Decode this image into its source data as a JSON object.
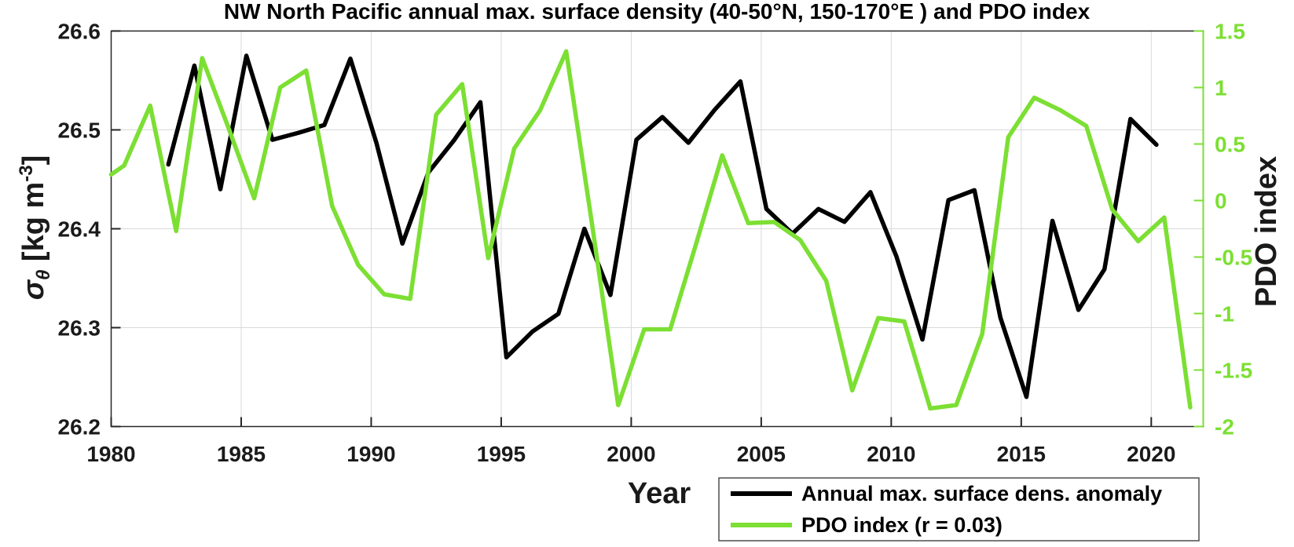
{
  "chart_data": {
    "type": "line",
    "title": "NW North Pacific annual max. surface density (40-50°N, 150-170°E ) and PDO index",
    "xlabel": "Year",
    "ylabel_left_parts": {
      "sigma": "σ",
      "sub": "θ",
      "mid": " [kg m",
      "sup": "-3",
      "end": "]"
    },
    "ylabel_right": "PDO index",
    "xlim": [
      1980,
      2022
    ],
    "ylim_left": [
      26.2,
      26.6
    ],
    "ylim_right": [
      -2,
      1.5
    ],
    "grid": true,
    "xticks": [
      1980,
      1985,
      1990,
      1995,
      2000,
      2005,
      2010,
      2015,
      2020
    ],
    "xtick_labels": [
      "1980",
      "1985",
      "1990",
      "1995",
      "2000",
      "2005",
      "2010",
      "2015",
      "2020"
    ],
    "yticks_left": [
      26.2,
      26.3,
      26.4,
      26.5,
      26.6
    ],
    "ytick_labels_left": [
      "26.2",
      "26.3",
      "26.4",
      "26.5",
      "26.6"
    ],
    "yticks_right": [
      -2,
      -1.5,
      -1,
      -0.5,
      0,
      0.5,
      1,
      1.5
    ],
    "ytick_labels_right": [
      "-2",
      "-1.5",
      "-1",
      "-0.5",
      "0",
      "0.5",
      "1",
      "1.5"
    ],
    "colors": {
      "density_line": "#000000",
      "pdo_line": "#7cdf33",
      "grid": "#d9d9d9",
      "axis": "#262626",
      "tick_text": "#1a1a1a"
    },
    "series": [
      {
        "name": "Annual max. surface dens. anomaly",
        "axis": "left",
        "color": "#000000",
        "plot_offset": 0.2,
        "years": [
          1982,
          1983,
          1984,
          1985,
          1986,
          1987,
          1988,
          1989,
          1990,
          1991,
          1992,
          1993,
          1994,
          1995,
          1996,
          1997,
          1998,
          1999,
          2000,
          2001,
          2002,
          2003,
          2004,
          2005,
          2006,
          2007,
          2008,
          2009,
          2010,
          2011,
          2012,
          2013,
          2014,
          2015,
          2016,
          2017,
          2018,
          2019,
          2020
        ],
        "values": [
          26.465,
          26.565,
          26.44,
          26.575,
          26.49,
          26.497,
          26.505,
          26.572,
          26.487,
          26.385,
          26.457,
          26.49,
          26.528,
          26.27,
          26.296,
          26.314,
          26.4,
          26.333,
          26.49,
          26.513,
          26.487,
          26.52,
          26.549,
          26.42,
          26.395,
          26.42,
          26.407,
          26.437,
          26.372,
          26.288,
          26.429,
          26.439,
          26.31,
          26.23,
          26.408,
          26.318,
          26.359,
          26.511,
          26.485
        ]
      },
      {
        "name": "PDO index (r = 0.03)",
        "axis": "right",
        "color": "#7cdf33",
        "plot_offset": 0.5,
        "start_point": {
          "year": 1980.0,
          "value": 0.23
        },
        "years": [
          1980,
          1981,
          1982,
          1983,
          1984,
          1985,
          1986,
          1987,
          1988,
          1989,
          1990,
          1991,
          1992,
          1993,
          1994,
          1995,
          1996,
          1997,
          1998,
          1999,
          2000,
          2001,
          2002,
          2003,
          2004,
          2005,
          2006,
          2007,
          2008,
          2009,
          2010,
          2011,
          2012,
          2013,
          2014,
          2015,
          2016,
          2017,
          2018,
          2019,
          2020,
          2021
        ],
        "values": [
          0.31,
          0.84,
          -0.27,
          1.26,
          0.65,
          0.02,
          1.0,
          1.15,
          -0.05,
          -0.57,
          -0.83,
          -0.87,
          0.76,
          1.03,
          -0.51,
          0.46,
          0.8,
          1.32,
          -0.22,
          -1.81,
          -1.14,
          -1.14,
          -0.38,
          0.4,
          -0.2,
          -0.19,
          -0.35,
          -0.71,
          -1.68,
          -1.04,
          -1.07,
          -1.84,
          -1.81,
          -1.18,
          0.56,
          0.91,
          0.8,
          0.66,
          -0.08,
          -0.36,
          -0.15,
          -1.83
        ]
      }
    ],
    "legend": {
      "position": "bottom-right-outside",
      "entries": [
        "Annual max. surface dens. anomaly",
        "PDO index (r = 0.03)"
      ]
    }
  }
}
